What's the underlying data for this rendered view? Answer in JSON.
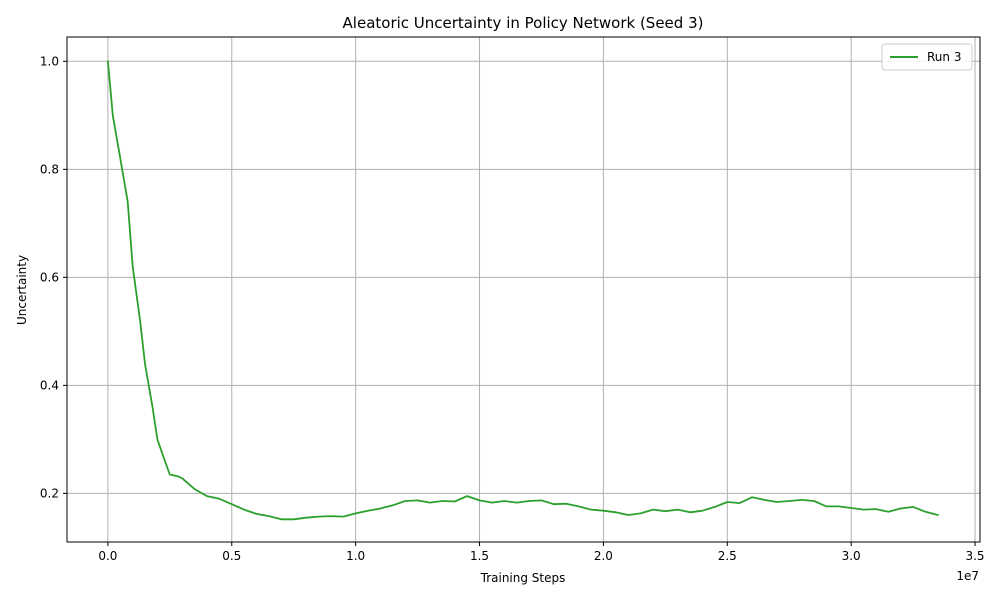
{
  "chart_data": {
    "type": "line",
    "title": "Aleatoric Uncertainty in Policy Network (Seed 3)",
    "xlabel": "Training Steps",
    "ylabel": "Uncertainty",
    "x_offset_label": "1e7",
    "x_scale": 10000000,
    "xlim": [
      -0.165,
      3.52
    ],
    "ylim": [
      0.11,
      1.045
    ],
    "xticks": [
      0.0,
      0.5,
      1.0,
      1.5,
      2.0,
      2.5,
      3.0,
      3.5
    ],
    "xtick_labels": [
      "0.0",
      "0.5",
      "1.0",
      "1.5",
      "2.0",
      "2.5",
      "3.0",
      "3.5"
    ],
    "yticks": [
      0.2,
      0.4,
      0.6,
      0.8,
      1.0
    ],
    "ytick_labels": [
      "0.2",
      "0.4",
      "0.6",
      "0.8",
      "1.0"
    ],
    "grid": true,
    "legend_position": "top-right",
    "series": [
      {
        "name": "Run 3",
        "color": "#2ca02c",
        "x": [
          0.0,
          0.02,
          0.05,
          0.08,
          0.1,
          0.13,
          0.15,
          0.18,
          0.2,
          0.23,
          0.25,
          0.28,
          0.3,
          0.35,
          0.4,
          0.45,
          0.5,
          0.55,
          0.6,
          0.65,
          0.7,
          0.75,
          0.8,
          0.85,
          0.9,
          0.95,
          1.0,
          1.05,
          1.1,
          1.15,
          1.2,
          1.25,
          1.3,
          1.35,
          1.4,
          1.45,
          1.5,
          1.55,
          1.6,
          1.65,
          1.7,
          1.75,
          1.8,
          1.85,
          1.9,
          1.95,
          2.0,
          2.05,
          2.1,
          2.15,
          2.2,
          2.25,
          2.3,
          2.35,
          2.4,
          2.45,
          2.5,
          2.55,
          2.6,
          2.65,
          2.7,
          2.75,
          2.8,
          2.85,
          2.9,
          2.95,
          3.0,
          3.05,
          3.1,
          3.15,
          3.2,
          3.25,
          3.3,
          3.35
        ],
        "y": [
          1.0,
          0.9,
          0.82,
          0.74,
          0.62,
          0.52,
          0.44,
          0.36,
          0.3,
          0.26,
          0.235,
          0.232,
          0.228,
          0.208,
          0.195,
          0.19,
          0.18,
          0.17,
          0.162,
          0.158,
          0.152,
          0.152,
          0.155,
          0.157,
          0.158,
          0.157,
          0.163,
          0.168,
          0.172,
          0.178,
          0.186,
          0.187,
          0.183,
          0.186,
          0.185,
          0.195,
          0.187,
          0.183,
          0.186,
          0.183,
          0.186,
          0.187,
          0.18,
          0.181,
          0.176,
          0.17,
          0.168,
          0.165,
          0.16,
          0.163,
          0.17,
          0.167,
          0.17,
          0.165,
          0.168,
          0.175,
          0.184,
          0.182,
          0.193,
          0.188,
          0.184,
          0.186,
          0.188,
          0.186,
          0.176,
          0.176,
          0.173,
          0.17,
          0.171,
          0.166,
          0.172,
          0.175,
          0.166,
          0.16
        ]
      }
    ]
  }
}
